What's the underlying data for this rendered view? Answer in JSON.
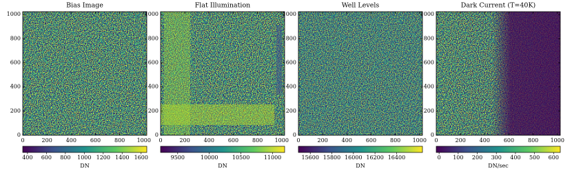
{
  "chart_data": [
    {
      "type": "heatmap",
      "title": "Bias Image",
      "xlim": [
        0,
        1024
      ],
      "ylim": [
        0,
        1024
      ],
      "xticks": [
        0,
        200,
        400,
        600,
        800,
        1000
      ],
      "yticks": [
        0,
        200,
        400,
        600,
        800,
        1000
      ],
      "colorbar": {
        "label": "DN",
        "lim": [
          350,
          1660
        ],
        "ticks": [
          400,
          600,
          800,
          1000,
          1200,
          1400,
          1600
        ]
      }
    },
    {
      "type": "heatmap",
      "title": "Flat Illumination",
      "xlim": [
        0,
        1024
      ],
      "ylim": [
        0,
        1024
      ],
      "xticks": [
        0,
        200,
        400,
        600,
        800,
        1000
      ],
      "yticks": [
        0,
        200,
        400,
        600,
        800,
        1000
      ],
      "colorbar": {
        "label": "DN",
        "lim": [
          9230,
          11190
        ],
        "ticks": [
          9500,
          10000,
          10500,
          11000
        ]
      }
    },
    {
      "type": "heatmap",
      "title": "Well Levels",
      "xlim": [
        0,
        1024
      ],
      "ylim": [
        0,
        1024
      ],
      "xticks": [
        0,
        200,
        400,
        600,
        800,
        1000
      ],
      "yticks": [
        0,
        200,
        400,
        600,
        800,
        1000
      ],
      "colorbar": {
        "label": "DN",
        "lim": [
          15490,
          16640
        ],
        "ticks": [
          15600,
          15800,
          16000,
          16200,
          16400
        ]
      }
    },
    {
      "type": "heatmap",
      "title": "Dark Current (T=40K)",
      "xlim": [
        0,
        1024
      ],
      "ylim": [
        0,
        1024
      ],
      "xticks": [
        0,
        200,
        400,
        600,
        800,
        1000
      ],
      "yticks": [
        0,
        200,
        400,
        600,
        800,
        1000
      ],
      "colorbar": {
        "label": "DN/sec",
        "lim": [
          -15,
          635
        ],
        "ticks": [
          0,
          100,
          200,
          300,
          400,
          500,
          600
        ]
      }
    }
  ]
}
